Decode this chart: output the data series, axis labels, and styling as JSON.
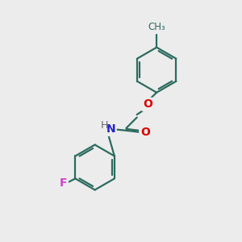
{
  "background_color": "#ececec",
  "bond_color": "#2d6b5e",
  "bond_width": 1.6,
  "atom_labels": {
    "O_ether": {
      "text": "O",
      "color": "#dd0000",
      "fontsize": 10
    },
    "O_carbonyl": {
      "text": "O",
      "color": "#dd0000",
      "fontsize": 10
    },
    "N": {
      "text": "N",
      "color": "#2222cc",
      "fontsize": 10
    },
    "H": {
      "text": "H",
      "color": "#666666",
      "fontsize": 9
    },
    "F": {
      "text": "F",
      "color": "#cc44cc",
      "fontsize": 10
    },
    "CH3_bond": true
  },
  "figsize": [
    3.0,
    3.0
  ],
  "dpi": 100
}
